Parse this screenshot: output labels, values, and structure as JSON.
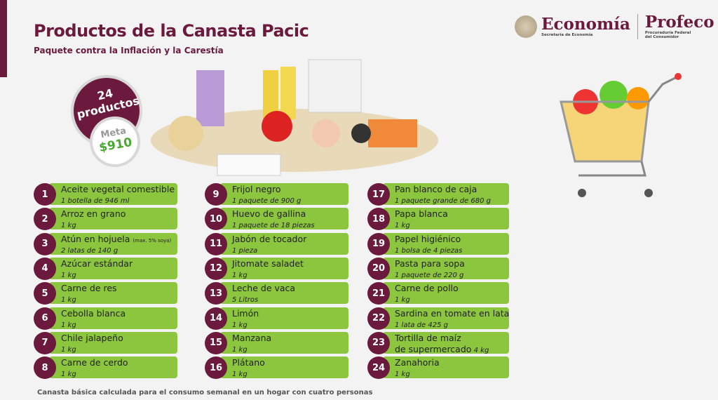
{
  "header": {
    "title": "Productos de la Canasta Pacic",
    "subtitle": "Paquete contra la Inflación y la Carestía"
  },
  "logos": {
    "economia": "Economía",
    "economia_sub": "Secretaría de Economía",
    "profeco": "Profeco",
    "profeco_sub1": "Procuraduría Federal",
    "profeco_sub2": "del Consumidor"
  },
  "badge": {
    "count": "24",
    "label": "productos",
    "meta_label": "Meta",
    "meta_value": "$910"
  },
  "colors": {
    "maroon": "#6b1a3d",
    "green": "#8cc63f",
    "meta_green": "#4aa832"
  },
  "items": [
    {
      "n": "1",
      "name": "Aceite vegetal comestible",
      "note": "",
      "detail": "1 botella de 946 ml"
    },
    {
      "n": "2",
      "name": "Arroz en grano",
      "note": "",
      "detail": "1 kg"
    },
    {
      "n": "3",
      "name": "Atún en hojuela",
      "note": "(max. 5% soya)",
      "detail": "2 latas de 140 g"
    },
    {
      "n": "4",
      "name": "Azúcar estándar",
      "note": "",
      "detail": "1 kg"
    },
    {
      "n": "5",
      "name": "Carne de res",
      "note": "",
      "detail": "1 kg"
    },
    {
      "n": "6",
      "name": "Cebolla blanca",
      "note": "",
      "detail": "1 kg"
    },
    {
      "n": "7",
      "name": "Chile jalapeño",
      "note": "",
      "detail": "1 kg"
    },
    {
      "n": "8",
      "name": "Carne de cerdo",
      "note": "",
      "detail": "1 kg"
    },
    {
      "n": "9",
      "name": "Frijol negro",
      "note": "",
      "detail": "1 paquete de 900 g"
    },
    {
      "n": "10",
      "name": "Huevo de gallina",
      "note": "",
      "detail": "1 paquete de 18 piezas"
    },
    {
      "n": "11",
      "name": "Jabón de tocador",
      "note": "",
      "detail": "1 pieza"
    },
    {
      "n": "12",
      "name": "Jitomate saladet",
      "note": "",
      "detail": "1 kg"
    },
    {
      "n": "13",
      "name": "Leche de vaca",
      "note": "",
      "detail": "5 Litros"
    },
    {
      "n": "14",
      "name": "Limón",
      "note": "",
      "detail": "1 kg"
    },
    {
      "n": "15",
      "name": "Manzana",
      "note": "",
      "detail": "1 kg"
    },
    {
      "n": "16",
      "name": "Plátano",
      "note": "",
      "detail": "1 kg"
    },
    {
      "n": "17",
      "name": "Pan blanco de caja",
      "note": "",
      "detail": "1 paquete grande de 680 g"
    },
    {
      "n": "18",
      "name": "Papa blanca",
      "note": "",
      "detail": "1 kg"
    },
    {
      "n": "19",
      "name": "Papel higiénico",
      "note": "",
      "detail": "1 bolsa de 4 piezas"
    },
    {
      "n": "20",
      "name": "Pasta para sopa",
      "note": "",
      "detail": "1 paquete de 220 g"
    },
    {
      "n": "21",
      "name": "Carne de pollo",
      "note": "",
      "detail": "1 kg"
    },
    {
      "n": "22",
      "name": "Sardina en tomate en lata",
      "note": "",
      "detail": "1 lata de 425 g"
    },
    {
      "n": "23",
      "name": "Tortilla de maíz",
      "note": "",
      "detail": "de supermercado",
      "detail_tail": "4 kg"
    },
    {
      "n": "24",
      "name": "Zanahoria",
      "note": "",
      "detail": "1 kg"
    }
  ],
  "footer": "Canasta básica calculada para el consumo semanal en un hogar con cuatro personas"
}
